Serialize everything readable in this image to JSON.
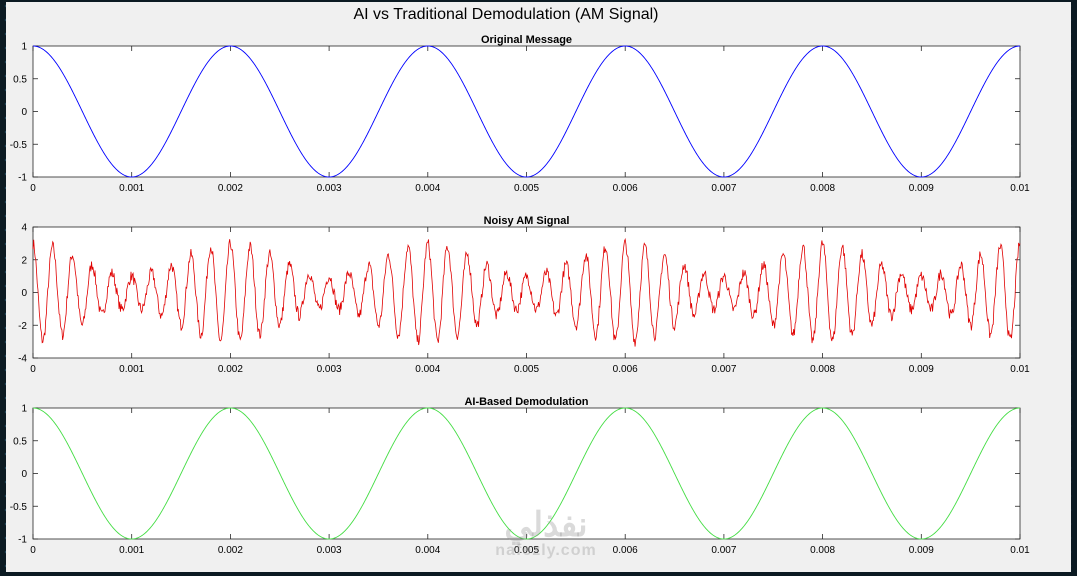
{
  "figure": {
    "title": "AI vs Traditional Demodulation (AM Signal)",
    "watermark_arabic": "نفذلي",
    "watermark_latin": "nafezly.com"
  },
  "chart_data": [
    {
      "type": "line",
      "title": "Original Message",
      "xlim": [
        0,
        0.01
      ],
      "ylim": [
        -1,
        1
      ],
      "xticks": [
        "0",
        "0.001",
        "0.002",
        "0.003",
        "0.004",
        "0.005",
        "0.006",
        "0.007",
        "0.008",
        "0.009",
        "0.01"
      ],
      "yticks": [
        "-1",
        "-0.5",
        "0",
        "0.5",
        "1"
      ],
      "grid": false,
      "series": [
        {
          "color": "#0000ff",
          "function": "cos(2*pi*500*t)",
          "x_range": [
            0,
            0.01
          ]
        }
      ]
    },
    {
      "type": "line",
      "title": "Noisy AM Signal",
      "xlim": [
        0,
        0.01
      ],
      "ylim": [
        -4,
        4
      ],
      "xticks": [
        "0",
        "0.001",
        "0.002",
        "0.003",
        "0.004",
        "0.005",
        "0.006",
        "0.007",
        "0.008",
        "0.009",
        "0.01"
      ],
      "yticks": [
        "-4",
        "-2",
        "0",
        "2",
        "4"
      ],
      "grid": false,
      "series": [
        {
          "color": "#e00000",
          "function": "(1+0.5*cos(2*pi*500*t))*2*cos(2*pi*5000*t)+noise",
          "x_range": [
            0,
            0.01
          ]
        }
      ]
    },
    {
      "type": "line",
      "title": "AI-Based Demodulation",
      "xlim": [
        0,
        0.01
      ],
      "ylim": [
        -1,
        1
      ],
      "xticks": [
        "0",
        "0.001",
        "0.002",
        "0.003",
        "0.004",
        "0.005",
        "0.006",
        "0.007",
        "0.008",
        "0.009",
        "0.01"
      ],
      "yticks": [
        "-1",
        "-0.5",
        "0",
        "0.5",
        "1"
      ],
      "grid": false,
      "series": [
        {
          "color": "#44dd44",
          "function": "cos(2*pi*500*t)",
          "x_range": [
            0,
            0.01
          ]
        }
      ]
    }
  ]
}
